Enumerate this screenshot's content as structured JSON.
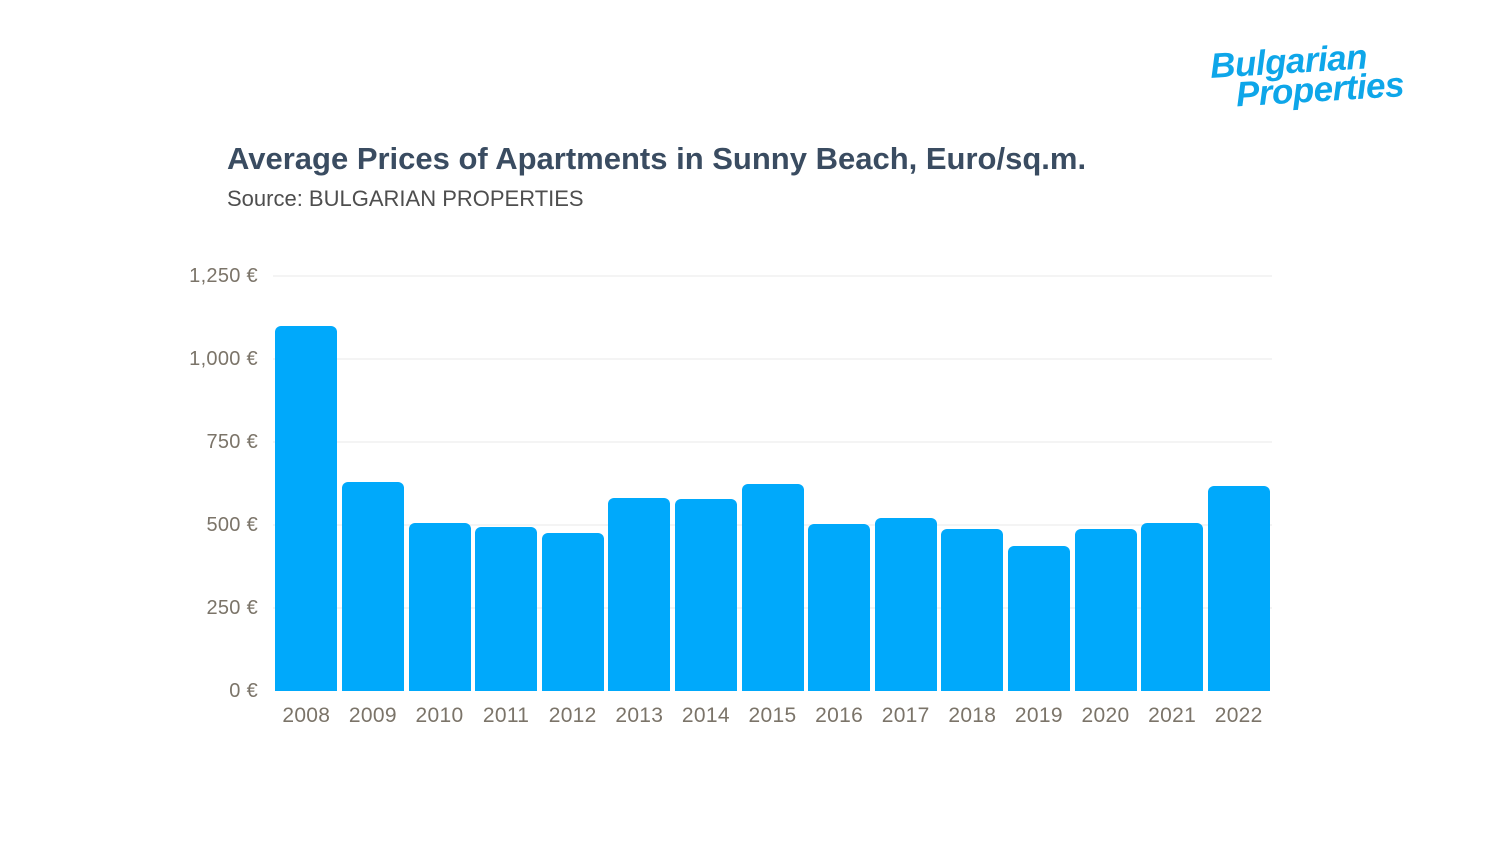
{
  "brand": {
    "logo_line1": "Bulgarian",
    "logo_line2": "Properties",
    "color": "#0ea6e9"
  },
  "header": {
    "title": "Average Prices of Apartments in Sunny Beach, Euro/sq.m.",
    "source": "Source: BULGARIAN PROPERTIES"
  },
  "chart_data": {
    "type": "bar",
    "title": "Average Prices of Apartments in Sunny Beach, Euro/sq.m.",
    "subtitle": "Source: BULGARIAN PROPERTIES",
    "categories": [
      "2008",
      "2009",
      "2010",
      "2011",
      "2012",
      "2013",
      "2014",
      "2015",
      "2016",
      "2017",
      "2018",
      "2019",
      "2020",
      "2021",
      "2022"
    ],
    "values": [
      1100,
      630,
      507,
      494,
      476,
      580,
      578,
      625,
      503,
      520,
      489,
      436,
      489,
      505,
      618
    ],
    "xlabel": "",
    "ylabel": "",
    "ylim": [
      0,
      1250
    ],
    "ytick_step": 250,
    "ytick_labels": [
      "0 €",
      "250 €",
      "500 €",
      "750 €",
      "1,000 €",
      "1,250 €"
    ],
    "bar_color": "#00a9fb",
    "grid": true,
    "grid_color": "#eaeaea",
    "axis_label_color": "#7b7469",
    "legend_position": "none"
  }
}
